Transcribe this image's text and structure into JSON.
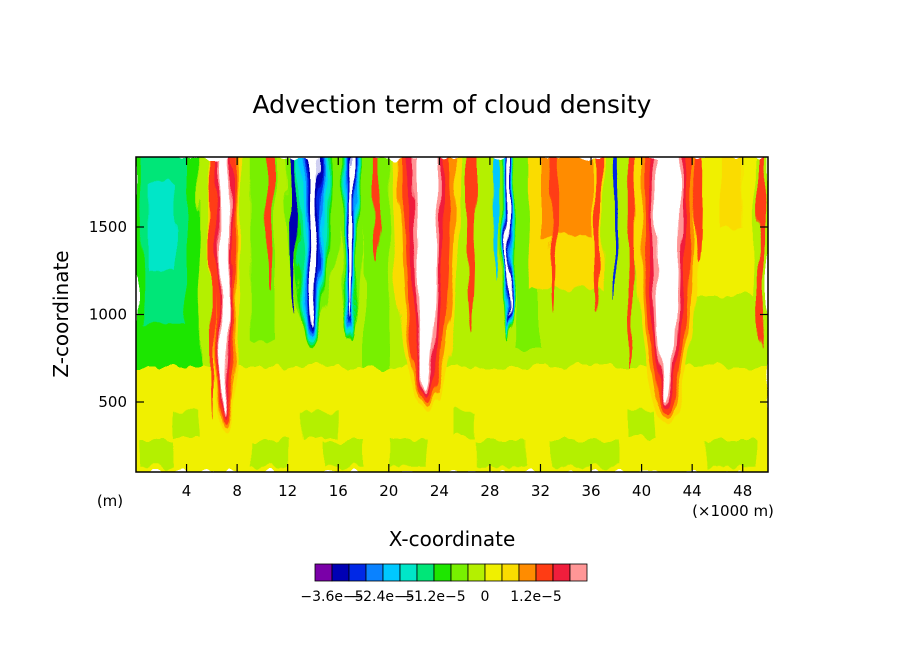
{
  "chart_data": {
    "type": "heatmap",
    "title": "Advection term of cloud density",
    "xlabel": "X-coordinate",
    "ylabel": "Z-coordinate",
    "x_unit_left": "(m)",
    "x_unit_right": "(×1000 m)",
    "xlim": [
      0,
      50
    ],
    "ylim": [
      100,
      1900
    ],
    "x_ticks": [
      4,
      8,
      12,
      16,
      20,
      24,
      28,
      32,
      36,
      40,
      44,
      48
    ],
    "y_ticks": [
      500,
      1000,
      1500
    ],
    "colorbar": {
      "colors": [
        "#7a00a8",
        "#0000b4",
        "#0028e6",
        "#0a82ff",
        "#00c8ff",
        "#00e6c8",
        "#00e678",
        "#1ee600",
        "#78f000",
        "#b4f000",
        "#f0f000",
        "#fadc00",
        "#ff8c00",
        "#ff3c14",
        "#f01e3c",
        "#ff9696"
      ],
      "labels": [
        "−3.6e−5",
        "−2.4e−5",
        "−1.2e−5",
        "0",
        "1.2e−5"
      ]
    },
    "features": [
      {
        "x": 14,
        "z_top": 1900,
        "z_bottom": 780,
        "width": 3.2,
        "sign": "negative"
      },
      {
        "x": 17,
        "z_top": 1900,
        "z_bottom": 830,
        "width": 1.6,
        "sign": "negative"
      },
      {
        "x": 29.5,
        "z_top": 1900,
        "z_bottom": 850,
        "width": 1.2,
        "sign": "negative"
      },
      {
        "x": 7,
        "z_top": 1900,
        "z_bottom": 300,
        "width": 2.2,
        "sign": "positive"
      },
      {
        "x": 23,
        "z_top": 1900,
        "z_bottom": 450,
        "width": 4.5,
        "sign": "positive"
      },
      {
        "x": 42,
        "z_top": 1900,
        "z_bottom": 380,
        "width": 4.5,
        "sign": "positive"
      }
    ]
  }
}
